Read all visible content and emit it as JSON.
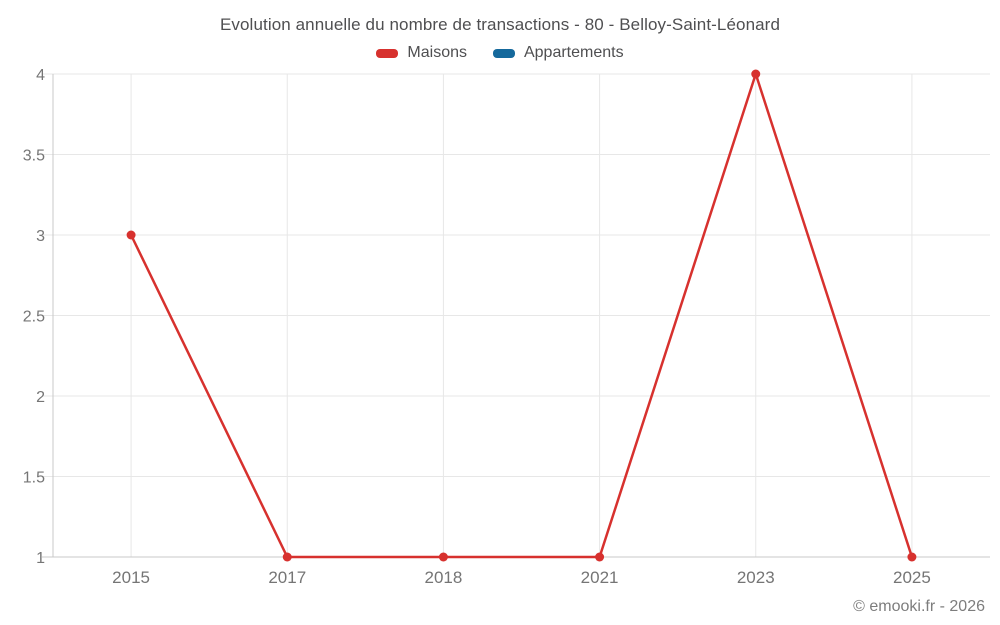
{
  "page": {
    "title": "Evolution annuelle du nombre de transactions - 80 - Belloy-Saint-Léonard",
    "attribution": "© emooki.fr - 2026"
  },
  "legend": {
    "items": [
      {
        "label": "Maisons",
        "color": "#d7312e"
      },
      {
        "label": "Appartements",
        "color": "#15699c"
      }
    ]
  },
  "colors": {
    "maisons": "#d7312e",
    "appartements": "#15699c",
    "gridline": "#e7e7e7",
    "axis_line": "#c9c9c9",
    "tick_label": "#757575",
    "title_text": "#4f4f51",
    "attribution_text": "#7d7d7d",
    "background": "#ffffff"
  },
  "chart_data": {
    "type": "line",
    "title": "Evolution annuelle du nombre de transactions - 80 - Belloy-Saint-Léonard",
    "categories": [
      "2015",
      "2017",
      "2018",
      "2021",
      "2023",
      "2025"
    ],
    "series": [
      {
        "name": "Maisons",
        "color": "#d7312e",
        "values": [
          3,
          1,
          1,
          1,
          4,
          1
        ]
      },
      {
        "name": "Appartements",
        "color": "#15699c",
        "values": []
      }
    ],
    "xlabel": "",
    "ylabel": "",
    "ylim": [
      1,
      4
    ],
    "yticks": [
      1,
      1.5,
      2,
      2.5,
      3,
      3.5,
      4
    ],
    "ytick_labels": [
      "1",
      "1.5",
      "2",
      "2.5",
      "3",
      "3.5",
      "4"
    ],
    "grid": true,
    "legend_position": "top",
    "marker": "circle",
    "line_width": 2.5,
    "marker_radius": 4.5
  }
}
